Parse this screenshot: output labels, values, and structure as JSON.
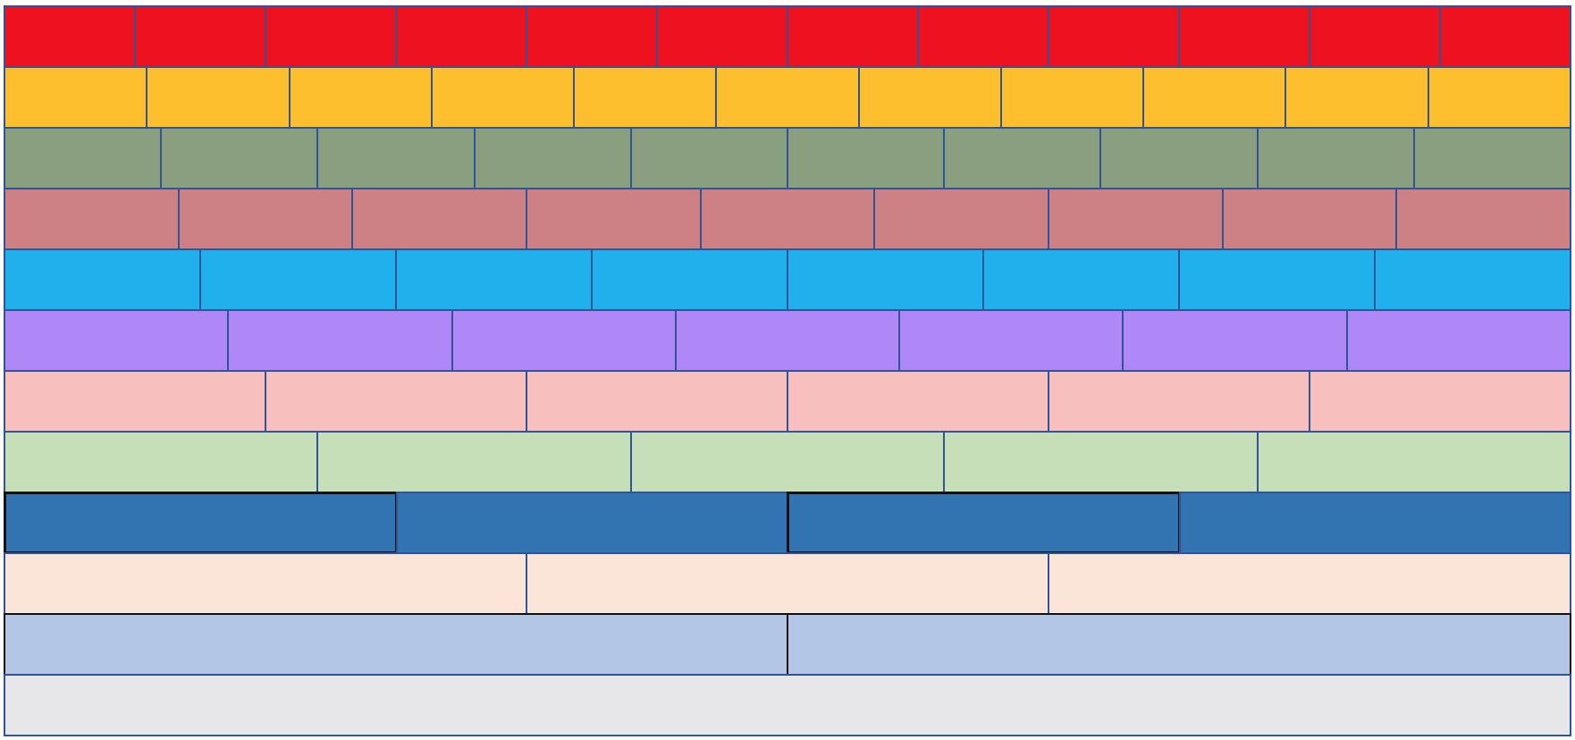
{
  "fraction_wall": {
    "rows": [
      {
        "parts": 12,
        "color": "#ee111f"
      },
      {
        "parts": 11,
        "color": "#fdbf2d"
      },
      {
        "parts": 10,
        "color": "#8a9e80"
      },
      {
        "parts": 9,
        "color": "#cd8185"
      },
      {
        "parts": 8,
        "color": "#20b0ec"
      },
      {
        "parts": 7,
        "color": "#b087f6"
      },
      {
        "parts": 6,
        "color": "#f8bfbf"
      },
      {
        "parts": 5,
        "color": "#c6dfb9"
      },
      {
        "parts": 4,
        "color": "#3273b2",
        "dark_edge_blocks": [
          0,
          2
        ]
      },
      {
        "parts": 3,
        "color": "#fbe5d9"
      },
      {
        "parts": 2,
        "color": "#b4c6e6",
        "outlined": true
      },
      {
        "parts": 1,
        "color": "#e7e6e8"
      }
    ],
    "border_color": "#2f5597",
    "highlight_border_color": "#111111"
  }
}
